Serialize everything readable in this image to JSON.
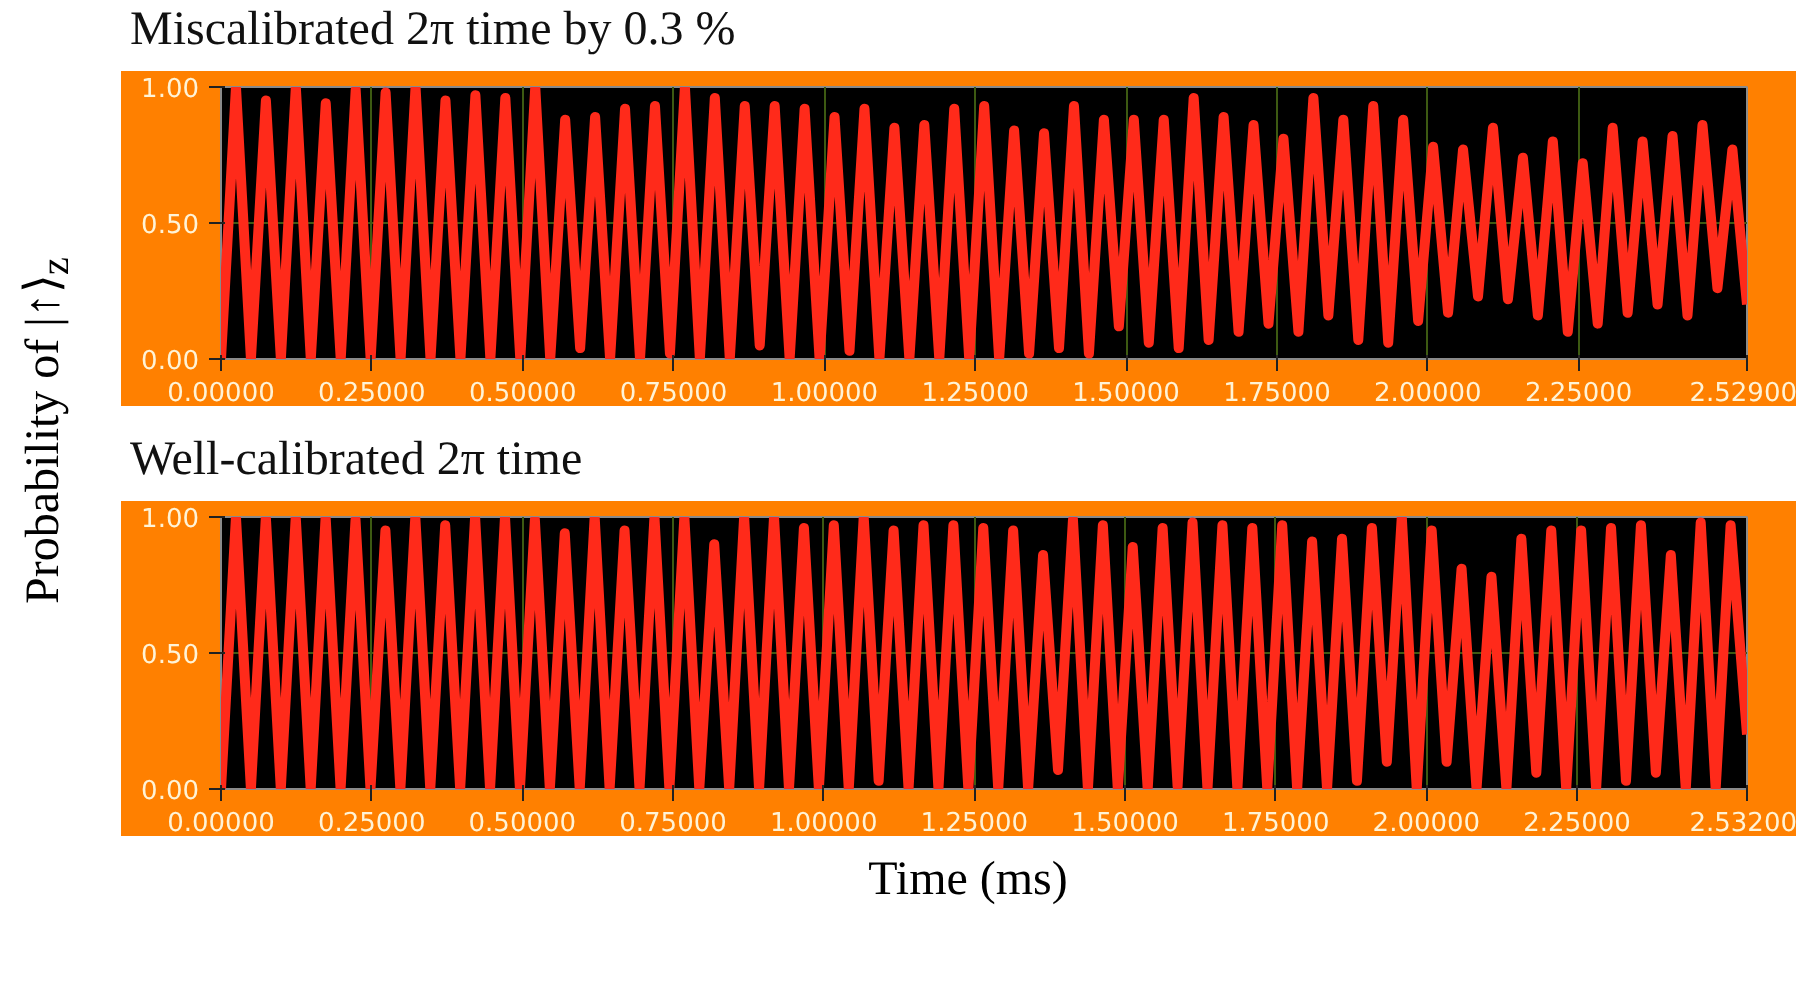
{
  "chart_data": [
    {
      "type": "line",
      "title": "Miscalibrated 2π time by 0.3 %",
      "ylabel": "Probability of |↑⟩$_{z}$",
      "xlim": [
        0,
        2.529
      ],
      "ylim": [
        0,
        1
      ],
      "xticks": [
        {
          "value": 0,
          "label": "0.00000"
        },
        {
          "value": 0.25,
          "label": "0.25000"
        },
        {
          "value": 0.5,
          "label": "0.50000"
        },
        {
          "value": 0.75,
          "label": "0.75000"
        },
        {
          "value": 1.0,
          "label": "1.00000"
        },
        {
          "value": 1.25,
          "label": "1.25000"
        },
        {
          "value": 1.5,
          "label": "1.50000"
        },
        {
          "value": 1.75,
          "label": "1.75000"
        },
        {
          "value": 2.0,
          "label": "2.00000"
        },
        {
          "value": 2.25,
          "label": "2.25000"
        },
        {
          "value": 2.529,
          "label": "2.52900"
        }
      ],
      "yticks": [
        {
          "value": 0,
          "label": "0.00"
        },
        {
          "value": 0.5,
          "label": "0.50"
        },
        {
          "value": 1,
          "label": "1.00"
        }
      ],
      "grid": true,
      "series": [
        {
          "color": "#ff2a1a",
          "x": [
            0,
            0.0248,
            0.0496,
            0.0744,
            0.0992,
            0.124,
            0.1488,
            0.1736,
            0.1984,
            0.2232,
            0.248,
            0.2728,
            0.2976,
            0.3224,
            0.3472,
            0.372,
            0.3968,
            0.4216,
            0.4464,
            0.4712,
            0.496,
            0.5208,
            0.5456,
            0.5704,
            0.5952,
            0.62,
            0.6448,
            0.6696,
            0.6944,
            0.7192,
            0.744,
            0.7688,
            0.7936,
            0.8184,
            0.8432,
            0.868,
            0.8928,
            0.9176,
            0.9424,
            0.9672,
            0.992,
            1.0168,
            1.0416,
            1.0664,
            1.0912,
            1.116,
            1.1408,
            1.1656,
            1.1904,
            1.2152,
            1.24,
            1.2648,
            1.2896,
            1.3144,
            1.3392,
            1.364,
            1.3888,
            1.4136,
            1.4384,
            1.4632,
            1.488,
            1.5128,
            1.5376,
            1.5624,
            1.5872,
            1.612,
            1.6368,
            1.6616,
            1.6864,
            1.7112,
            1.736,
            1.7608,
            1.7856,
            1.8104,
            1.8352,
            1.86,
            1.8848,
            1.9096,
            1.9344,
            1.9592,
            1.984,
            2.0088,
            2.0336,
            2.0584,
            2.0832,
            2.108,
            2.1328,
            2.1576,
            2.1824,
            2.2072,
            2.232,
            2.2568,
            2.2816,
            2.3064,
            2.3312,
            2.356,
            2.3808,
            2.4056,
            2.4304,
            2.4552,
            2.48,
            2.5048,
            2.529
          ],
          "values": [
            0,
            1.0,
            0,
            0.95,
            0,
            1.0,
            0,
            0.94,
            0,
            0.99,
            0,
            0.98,
            0,
            1.0,
            0,
            0.95,
            0,
            0.97,
            0,
            0.96,
            0,
            1.0,
            0,
            0.88,
            0.04,
            0.89,
            0,
            0.92,
            0,
            0.93,
            0.02,
            1.0,
            0,
            0.96,
            0,
            0.93,
            0.05,
            0.93,
            0,
            0.92,
            0,
            0.89,
            0.03,
            0.92,
            0,
            0.85,
            0,
            0.86,
            0,
            0.92,
            0,
            0.93,
            0,
            0.84,
            0.02,
            0.83,
            0.04,
            0.93,
            0.02,
            0.88,
            0.12,
            0.88,
            0.06,
            0.88,
            0.04,
            0.96,
            0.07,
            0.89,
            0.1,
            0.86,
            0.13,
            0.81,
            0.1,
            0.96,
            0.16,
            0.88,
            0.07,
            0.93,
            0.06,
            0.88,
            0.14,
            0.78,
            0.17,
            0.77,
            0.23,
            0.85,
            0.22,
            0.74,
            0.16,
            0.8,
            0.1,
            0.72,
            0.13,
            0.85,
            0.17,
            0.8,
            0.2,
            0.82,
            0.16,
            0.86,
            0.26,
            0.77,
            0.2
          ]
        }
      ]
    },
    {
      "type": "line",
      "title": "Well-calibrated 2π time",
      "xlabel": "Time (ms)",
      "xlim": [
        0,
        2.532
      ],
      "ylim": [
        0,
        1
      ],
      "xticks": [
        {
          "value": 0,
          "label": "0.00000"
        },
        {
          "value": 0.25,
          "label": "0.25000"
        },
        {
          "value": 0.5,
          "label": "0.50000"
        },
        {
          "value": 0.75,
          "label": "0.75000"
        },
        {
          "value": 1.0,
          "label": "1.00000"
        },
        {
          "value": 1.25,
          "label": "1.25000"
        },
        {
          "value": 1.5,
          "label": "1.50000"
        },
        {
          "value": 1.75,
          "label": "1.75000"
        },
        {
          "value": 2.0,
          "label": "2.00000"
        },
        {
          "value": 2.25,
          "label": "2.25000"
        },
        {
          "value": 2.532,
          "label": "2.53200"
        }
      ],
      "yticks": [
        {
          "value": 0,
          "label": "0.00"
        },
        {
          "value": 0.5,
          "label": "0.50"
        },
        {
          "value": 1,
          "label": "1.00"
        }
      ],
      "grid": true,
      "series": [
        {
          "color": "#ff2a1a",
          "x": [
            0,
            0.0248,
            0.0496,
            0.0744,
            0.0992,
            0.124,
            0.1488,
            0.1736,
            0.1984,
            0.2232,
            0.248,
            0.2728,
            0.2976,
            0.3224,
            0.3472,
            0.372,
            0.3968,
            0.4216,
            0.4464,
            0.4712,
            0.496,
            0.5208,
            0.5456,
            0.5704,
            0.5952,
            0.62,
            0.6448,
            0.6696,
            0.6944,
            0.7192,
            0.744,
            0.7688,
            0.7936,
            0.8184,
            0.8432,
            0.868,
            0.8928,
            0.9176,
            0.9424,
            0.9672,
            0.992,
            1.0168,
            1.0416,
            1.0664,
            1.0912,
            1.116,
            1.1408,
            1.1656,
            1.1904,
            1.2152,
            1.24,
            1.2648,
            1.2896,
            1.3144,
            1.3392,
            1.364,
            1.3888,
            1.4136,
            1.4384,
            1.4632,
            1.488,
            1.5128,
            1.5376,
            1.5624,
            1.5872,
            1.612,
            1.6368,
            1.6616,
            1.6864,
            1.7112,
            1.736,
            1.7608,
            1.7856,
            1.8104,
            1.8352,
            1.86,
            1.8848,
            1.9096,
            1.9344,
            1.9592,
            1.984,
            2.0088,
            2.0336,
            2.0584,
            2.0832,
            2.108,
            2.1328,
            2.1576,
            2.1824,
            2.2072,
            2.232,
            2.2568,
            2.2816,
            2.3064,
            2.3312,
            2.356,
            2.3808,
            2.4056,
            2.4304,
            2.4552,
            2.48,
            2.5048,
            2.532
          ],
          "values": [
            0,
            1.0,
            0,
            1.0,
            0,
            1.0,
            0,
            1.0,
            0,
            0.99,
            0,
            0.95,
            0,
            1.0,
            0,
            0.97,
            0,
            1.0,
            0,
            1.0,
            0,
            0.99,
            0,
            0.94,
            0,
            1.0,
            0,
            0.95,
            0,
            1.0,
            0,
            1.0,
            0,
            0.9,
            0,
            1.0,
            0,
            1.0,
            0,
            0.96,
            0,
            0.97,
            0,
            1.0,
            0.03,
            0.95,
            0,
            0.97,
            0,
            0.97,
            0,
            0.96,
            0,
            0.95,
            0,
            0.86,
            0.07,
            0.99,
            0,
            0.97,
            0,
            0.89,
            0,
            0.96,
            0.01,
            0.98,
            0,
            0.97,
            0,
            0.96,
            0,
            0.97,
            0,
            0.91,
            0,
            0.92,
            0.03,
            0.96,
            0.1,
            1.0,
            0,
            0.95,
            0.1,
            0.81,
            0,
            0.78,
            0,
            0.92,
            0.06,
            0.95,
            0,
            0.95,
            0,
            0.96,
            0.03,
            0.97,
            0.06,
            0.86,
            0,
            0.98,
            0,
            0.97,
            0.2
          ]
        }
      ]
    }
  ]
}
